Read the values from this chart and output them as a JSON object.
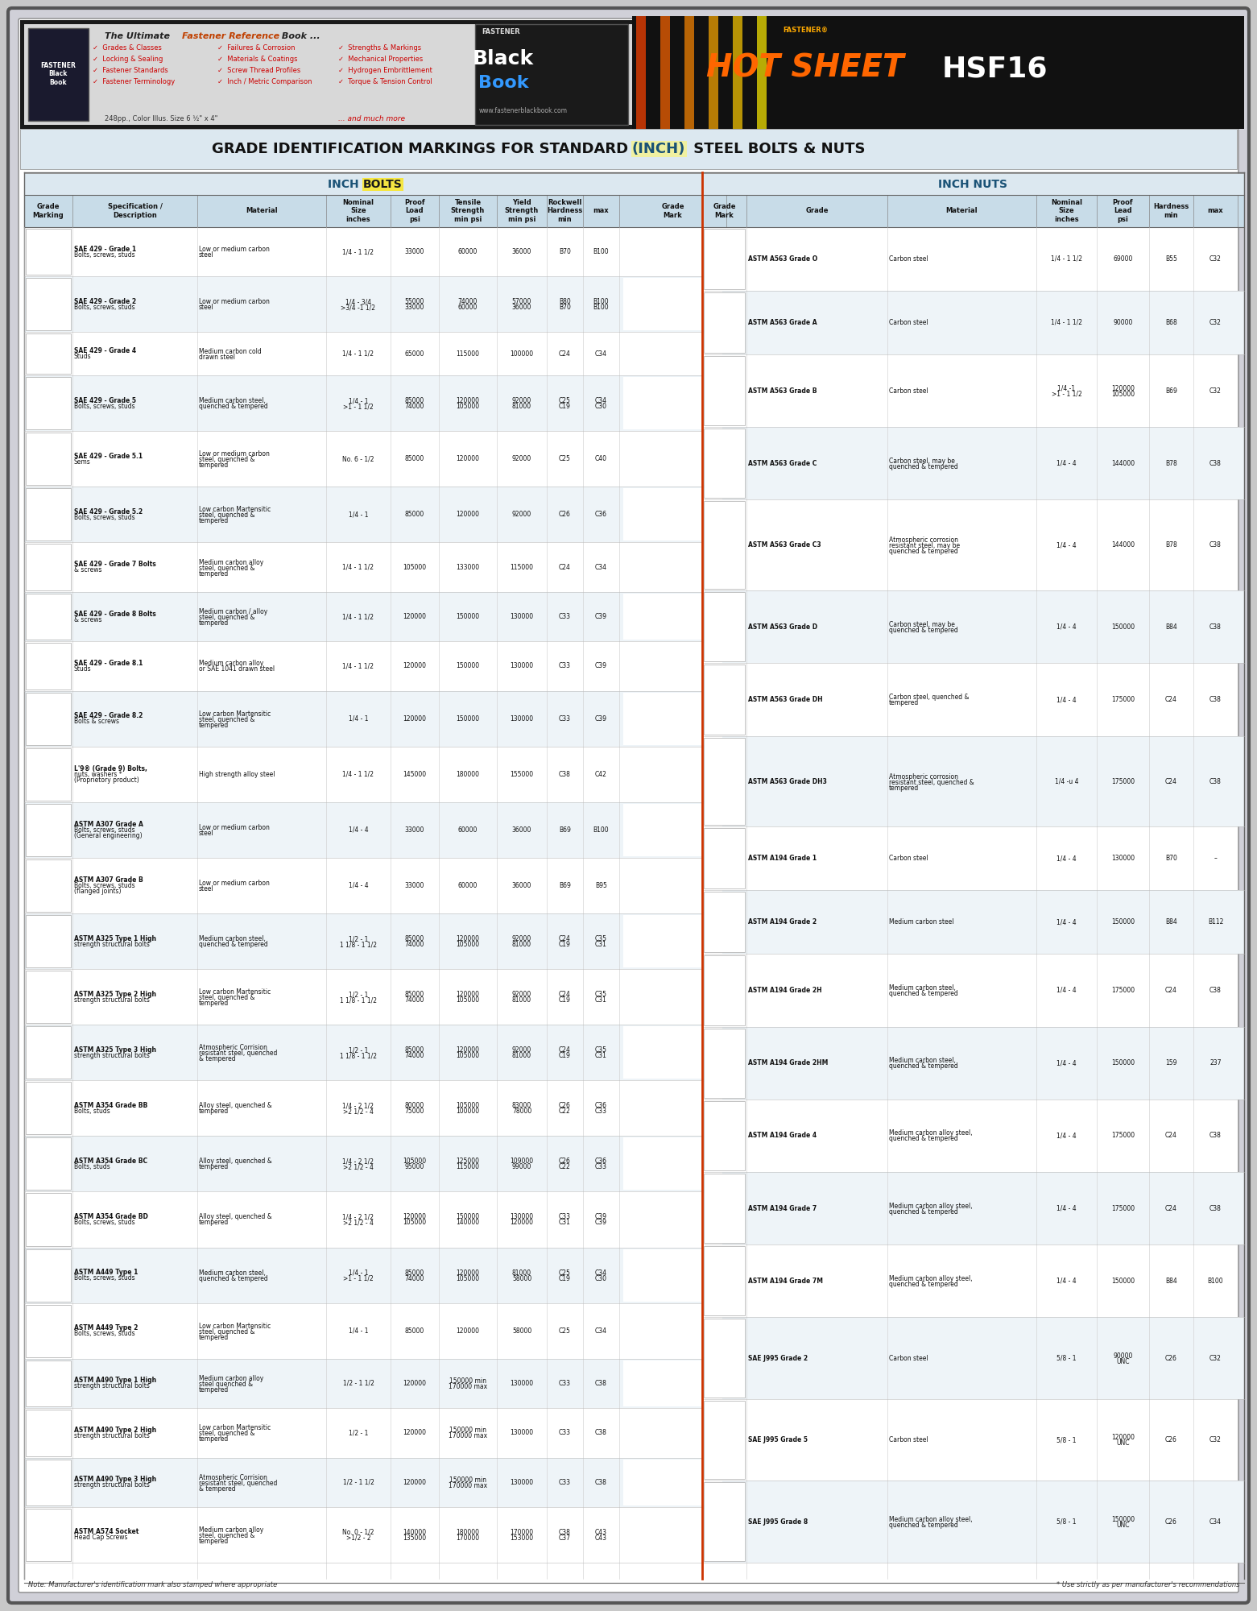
{
  "title": "GRADE IDENTIFICATION MARKINGS FOR STANDARD(INCH) STEEL BOLTS & NUTS",
  "title_inch": "INCH",
  "header_bg": "#d4e8f0",
  "bolt_section_title": "INCH BOLTS",
  "nut_section_title": "INCH NUTS",
  "bolt_headers": [
    "Grade\nMarking",
    "Specification /\nDescription",
    "Material",
    "Nominal\nSize\ninches",
    "Proof\nLoad\npsi",
    "Tensile\nStrength\nmin psi",
    "Yield\nStrength\nmin psi",
    "Rockwell\nHardness\nmin",
    "max",
    "Grade\nMark"
  ],
  "nut_headers": [
    "Grade\nMark",
    "Grade",
    "Material",
    "Nominal\nSize\ninches",
    "Proof\nLead\npsi",
    "Hardness\nmin",
    "max"
  ],
  "bolt_rows": [
    {
      "spec": "SAE 429 - Grade 1\nBolts, screws, studs",
      "material": "Low or medium carbon\nsteel",
      "size": "1/4 - 1 1/2",
      "proof": "33000",
      "tensile": "60000",
      "yield": "36000",
      "hw_min": "B70",
      "hw_max": "B100"
    },
    {
      "spec": "SAE 429 - Grade 2\nBolts, screws, studs",
      "material": "Low or medium carbon\nsteel",
      "size": "1/4 - 3/4\n>3/4 -1 1/2",
      "proof": "55000\n33000",
      "tensile": "74000\n60000",
      "yield": "57000\n36000",
      "hw_min": "B80\nB70",
      "hw_max": "B100\nB100"
    },
    {
      "spec": "SAE 429 - Grade 4\nStuds",
      "material": "Medium carbon cold\ndrawn steel",
      "size": "1/4 - 1 1/2",
      "proof": "65000",
      "tensile": "115000",
      "yield": "100000",
      "hw_min": "C24",
      "hw_max": "C34"
    },
    {
      "spec": "SAE 429 - Grade 5\nBolts, screws, studs",
      "material": "Medium carbon steel,\nquenched & tempered",
      "size": "1/4 - 1\n>1 - 1 1/2",
      "proof": "85000\n74000",
      "tensile": "120000\n105000",
      "yield": "92000\n81000",
      "hw_min": "C25\nC19",
      "hw_max": "C34\nC30"
    },
    {
      "spec": "SAE 429 - Grade 5.1\nSems",
      "material": "Low or medium carbon\nsteel, quenched &\ntempered",
      "size": "No. 6 - 1/2",
      "proof": "85000",
      "tensile": "120000",
      "yield": "92000",
      "hw_min": "C25",
      "hw_max": "C40"
    },
    {
      "spec": "SAE 429 - Grade 5.2\nBolts, screws, studs",
      "material": "Low carbon Martensitic\nsteel, quenched &\ntempered",
      "size": "1/4 - 1",
      "proof": "85000",
      "tensile": "120000",
      "yield": "92000",
      "hw_min": "C26",
      "hw_max": "C36"
    },
    {
      "spec": "SAE 429 - Grade 7 Bolts\n& screws",
      "material": "Medium carbon alloy\nsteel, quenched &\ntempered",
      "size": "1/4 - 1 1/2",
      "proof": "105000",
      "tensile": "133000",
      "yield": "115000",
      "hw_min": "C24",
      "hw_max": "C34"
    },
    {
      "spec": "SAE 429 - Grade 8 Bolts\n& screws",
      "material": "Medium carbon / alloy\nsteel, quenched &\ntempered",
      "size": "1/4 - 1 1/2",
      "proof": "120000",
      "tensile": "150000",
      "yield": "130000",
      "hw_min": "C33",
      "hw_max": "C39"
    },
    {
      "spec": "SAE 429 - Grade 8.1\nStuds",
      "material": "Medium carbon alloy\nor SAE 1041 drawn steel",
      "size": "1/4 - 1 1/2",
      "proof": "120000",
      "tensile": "150000",
      "yield": "130000",
      "hw_min": "C33",
      "hw_max": "C39"
    },
    {
      "spec": "SAE 429 - Grade 8.2\nBolts & screws",
      "material": "Low carbon Martensitic\nsteel, quenched &\ntempered",
      "size": "1/4 - 1",
      "proof": "120000",
      "tensile": "150000",
      "yield": "130000",
      "hw_min": "C33",
      "hw_max": "C39"
    },
    {
      "spec": "L'9® (Grade 9) Bolts,\nnuts, washers *\n(Proprietory product)",
      "material": "High strength alloy steel",
      "size": "1/4 - 1 1/2",
      "proof": "145000",
      "tensile": "180000",
      "yield": "155000",
      "hw_min": "C38",
      "hw_max": "C42"
    },
    {
      "spec": "ASTM A307 Grade A\nBolts, screws, studs\n(General engineering)",
      "material": "Low or medium carbon\nsteel",
      "size": "1/4 - 4",
      "proof": "33000",
      "tensile": "60000",
      "yield": "36000",
      "hw_min": "B69",
      "hw_max": "B100"
    },
    {
      "spec": "ASTM A307 Grade B\nBolts, screws, studs\n(flanged joints)",
      "material": "Low or medium carbon\nsteel",
      "size": "1/4 - 4",
      "proof": "33000",
      "tensile": "60000",
      "yield": "36000",
      "hw_min": "B69",
      "hw_max": "B95"
    },
    {
      "spec": "ASTM A325 Type 1 High\nstrength structural bolts",
      "material": "Medium carbon steel,\nquenched & tempered",
      "size": "1/2 - 1\n1 1/8 - 1 1/2",
      "proof": "85000\n74000",
      "tensile": "120000\n105000",
      "yield": "92000\n81000",
      "hw_min": "C24\nC19",
      "hw_max": "C35\nC31"
    },
    {
      "spec": "ASTM A325 Type 2 High\nstrength structural bolts",
      "material": "Low carbon Martensitic\nsteel, quenched &\ntempered",
      "size": "1/2 - 1\n1 1/8 - 1 1/2",
      "proof": "85000\n74000",
      "tensile": "120000\n105000",
      "yield": "92000\n81000",
      "hw_min": "C24\nC19",
      "hw_max": "C35\nC31"
    },
    {
      "spec": "ASTM A325 Type 3 High\nstrength structural bolts",
      "material": "Atmospheric Corrision\nresistant steel, quenched\n& tempered",
      "size": "1/2 - 1\n1 1/8 - 1 1/2",
      "proof": "85000\n74000",
      "tensile": "120000\n105000",
      "yield": "92000\n81000",
      "hw_min": "C24\nC19",
      "hw_max": "C35\nC31"
    },
    {
      "spec": "ASTM A354 Grade BB\nBolts, studs",
      "material": "Alloy steel, quenched &\ntempered",
      "size": "1/4 - 2 1/2\n>2 1/2 - 4",
      "proof": "80000\n75000",
      "tensile": "105000\n100000",
      "yield": "83000\n78000",
      "hw_min": "C26\nC22",
      "hw_max": "C36\nC33"
    },
    {
      "spec": "ASTM A354 Grade BC\nBolts, studs",
      "material": "Alloy steel, quenched &\ntempered",
      "size": "1/4 - 2 1/2\n>2 1/2 - 4",
      "proof": "105000\n95000",
      "tensile": "125000\n115000",
      "yield": "109000\n99000",
      "hw_min": "C26\nC22",
      "hw_max": "C36\nC33"
    },
    {
      "spec": "ASTM A354 Grade BD\nBolts, screws, studs",
      "material": "Alloy steel, quenched &\ntempered",
      "size": "1/4 - 2 1/2\n>2 1/2 - 4",
      "proof": "120000\n105000",
      "tensile": "150000\n140000",
      "yield": "130000\n120000",
      "hw_min": "C33\nC31",
      "hw_max": "C39\nC39"
    },
    {
      "spec": "ASTM A449 Type 1\nBolts, screws, studs",
      "material": "Medium carbon steel,\nquenched & tempered",
      "size": "1/4 - 1\n>1 - 1 1/2",
      "proof": "85000\n74000",
      "tensile": "120000\n105000",
      "yield": "81000\n58000",
      "hw_min": "C25\nC19",
      "hw_max": "C34\nC30"
    },
    {
      "spec": "ASTM A449 Type 2\nBolts, screws, studs",
      "material": "Low carbon Martensitic\nsteel, quenched &\ntempered",
      "size": "1/4 - 1",
      "proof": "85000",
      "tensile": "120000",
      "yield": "58000",
      "hw_min": "C25",
      "hw_max": "C34"
    },
    {
      "spec": "ASTM A490 Type 1 High\nstrength structural bolts",
      "material": "Medium carbon alloy\nsteel quenched &\ntempered",
      "size": "1/2 - 1 1/2",
      "proof": "120000",
      "tensile": "150000 min\n170000 max",
      "yield": "130000",
      "hw_min": "C33",
      "hw_max": "C38"
    },
    {
      "spec": "ASTM A490 Type 2 High\nstrength structural bolts",
      "material": "Low carbon Martensitic\nsteel, quenched &\ntempered",
      "size": "1/2 - 1",
      "proof": "120000",
      "tensile": "150000 min\n170000 max",
      "yield": "130000",
      "hw_min": "C33",
      "hw_max": "C38"
    },
    {
      "spec": "ASTM A490 Type 3 High\nstrength structural bolts",
      "material": "Atmospheric Corrision\nresistant steel, quenched\n& tempered",
      "size": "1/2 - 1 1/2",
      "proof": "120000",
      "tensile": "150000 min\n170000 max",
      "yield": "130000",
      "hw_min": "C33",
      "hw_max": "C38"
    },
    {
      "spec": "ASTM A574 Socket\nHead Cap Screws",
      "material": "Medium carbon alloy\nsteel, quenched &\ntempered",
      "size": "No. 0 - 1/2\n>1/2 - 2",
      "proof": "140000\n135000",
      "tensile": "180000\n170000",
      "yield": "170000\n153000",
      "hw_min": "C38\nC37",
      "hw_max": "C43\nC43"
    }
  ],
  "nut_rows": [
    {
      "grade": "ASTM A563 Grade O",
      "material": "Carbon steel",
      "size": "1/4 - 1 1/2",
      "proof": "69000",
      "hw_min": "B55",
      "hw_max": "C32"
    },
    {
      "grade": "ASTM A563 Grade A",
      "material": "Carbon steel",
      "size": "1/4 - 1 1/2",
      "proof": "90000",
      "hw_min": "B68",
      "hw_max": "C32"
    },
    {
      "grade": "ASTM A563 Grade B",
      "material": "Carbon steel",
      "size": "1/4 -1\n>1 - 1 1/2",
      "proof": "120000\n105000",
      "hw_min": "B69",
      "hw_max": "C32"
    },
    {
      "grade": "ASTM A563 Grade C",
      "material": "Carbon steel, may be\nquenched & tempered",
      "size": "1/4 - 4",
      "proof": "144000",
      "hw_min": "B78",
      "hw_max": "C38"
    },
    {
      "grade": "ASTM A563 Grade C3",
      "material": "Atmospheric corrosion\nresistant steel, may be\nquenched & tempered",
      "size": "1/4 - 4",
      "proof": "144000",
      "hw_min": "B78",
      "hw_max": "C38"
    },
    {
      "grade": "ASTM A563 Grade D",
      "material": "Carbon steel, may be\nquenched & tempered",
      "size": "1/4 - 4",
      "proof": "150000",
      "hw_min": "B84",
      "hw_max": "C38"
    },
    {
      "grade": "ASTM A563 Grade DH",
      "material": "Carbon steel, quenched &\ntempered",
      "size": "1/4 - 4",
      "proof": "175000",
      "hw_min": "C24",
      "hw_max": "C38"
    },
    {
      "grade": "ASTM A563 Grade DH3",
      "material": "Atmospheric corrosion\nresistant steel, quenched &\ntempered",
      "size": "1/4 -u 4",
      "proof": "175000",
      "hw_min": "C24",
      "hw_max": "C38"
    },
    {
      "grade": "ASTM A194 Grade 1",
      "material": "Carbon steel",
      "size": "1/4 - 4",
      "proof": "130000",
      "hw_min": "B70",
      "hw_max": "–"
    },
    {
      "grade": "ASTM A194 Grade 2",
      "material": "Medium carbon steel",
      "size": "1/4 - 4",
      "proof": "150000",
      "hw_min": "B84",
      "hw_max": "B112"
    },
    {
      "grade": "ASTM A194 Grade 2H",
      "material": "Medium carbon steel,\nquenched & tempered",
      "size": "1/4 - 4",
      "proof": "175000",
      "hw_min": "C24",
      "hw_max": "C38"
    },
    {
      "grade": "ASTM A194 Grade 2HM",
      "material": "Medium carbon steel,\nquenched & tempered",
      "size": "1/4 - 4",
      "proof": "150000",
      "hw_min": "159",
      "hw_max": "237"
    },
    {
      "grade": "ASTM A194 Grade 4",
      "material": "Medium carbon alloy steel,\nquenched & tempered",
      "size": "1/4 - 4",
      "proof": "175000",
      "hw_min": "C24",
      "hw_max": "C38"
    },
    {
      "grade": "ASTM A194 Grade 7",
      "material": "Medium carbon alloy steel,\nquenched & tempered",
      "size": "1/4 - 4",
      "proof": "175000",
      "hw_min": "C24",
      "hw_max": "C38"
    },
    {
      "grade": "ASTM A194 Grade 7M",
      "material": "Medium carbon alloy steel,\nquenched & tempered",
      "size": "1/4 - 4",
      "proof": "150000",
      "hw_min": "B84",
      "hw_max": "B100"
    },
    {
      "grade": "SAE J995 Grade 2",
      "material": "Carbon steel",
      "size": "5/8 - 1",
      "proof": "90000\nUNC",
      "hw_min": "C26",
      "hw_max": "C32"
    },
    {
      "grade": "SAE J995 Grade 5",
      "material": "Carbon steel",
      "size": "5/8 - 1",
      "proof": "120000\nUNC",
      "hw_min": "C26",
      "hw_max": "C32"
    },
    {
      "grade": "SAE J995 Grade 8",
      "material": "Medium carbon alloy steel,\nquenched & tempered",
      "size": "5/8 - 1",
      "proof": "150000\nUNC",
      "hw_min": "C26",
      "hw_max": "C34"
    }
  ],
  "bg_color": "#f0f0f0",
  "table_bg": "#ffffff",
  "header_color": "#c8dce8",
  "alt_row_color": "#f0f5f8",
  "section_color": "#1a5276",
  "bolt_highlight": "#f5e642",
  "border_color": "#888888",
  "dark_border": "#333333"
}
